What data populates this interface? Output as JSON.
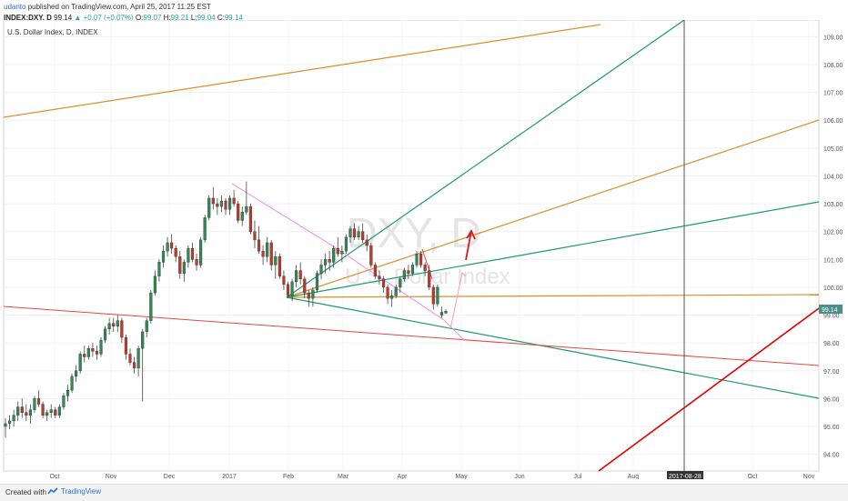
{
  "header": {
    "user": "udanto",
    "published": "published on TradingView.com, April 25, 2017 11:25 EST",
    "symbol": "INDEX:DXY, D",
    "last": "99.14",
    "change": "▲ +0.07 (+0.07%)",
    "o_label": "O:",
    "o_value": "99.07",
    "h_label": "H:",
    "h_value": "99.21",
    "l_label": "L:",
    "l_value": "99.04",
    "c_label": "C:",
    "c_value": "99.14"
  },
  "chart_data": {
    "type": "candlestick",
    "title": "U.S. Dollar Index, D, INDEX",
    "watermark_symbol": "DXY, D",
    "watermark_name": "U.S. Dollar Index",
    "y_ticks": [
      "94.00",
      "95.00",
      "96.00",
      "97.00",
      "98.00",
      "99.00",
      "100.00",
      "101.00",
      "102.00",
      "103.00",
      "104.00",
      "105.00",
      "106.00",
      "107.00",
      "108.00",
      "109.00"
    ],
    "x_ticks": [
      "Oct",
      "Nov",
      "Dec",
      "2017",
      "Feb",
      "Mar",
      "Apr",
      "May",
      "Jun",
      "Jul",
      "Aug",
      "Oct",
      "Nov"
    ],
    "ylim": [
      93.4,
      109.6
    ],
    "price_label": "99.14",
    "date_label": "2017-08-28",
    "candles": [
      [
        95.0,
        95.3,
        94.6,
        95.1
      ],
      [
        95.1,
        95.4,
        94.9,
        95.2
      ],
      [
        95.2,
        95.6,
        95.0,
        95.4
      ],
      [
        95.4,
        95.9,
        95.2,
        95.7
      ],
      [
        95.7,
        96.0,
        95.3,
        95.5
      ],
      [
        95.5,
        95.8,
        95.2,
        95.4
      ],
      [
        95.4,
        95.8,
        95.1,
        95.6
      ],
      [
        95.6,
        96.1,
        95.5,
        96.0
      ],
      [
        96.0,
        96.3,
        95.7,
        95.8
      ],
      [
        95.8,
        95.9,
        95.3,
        95.4
      ],
      [
        95.4,
        95.6,
        95.2,
        95.5
      ],
      [
        95.5,
        95.8,
        95.3,
        95.6
      ],
      [
        95.6,
        95.7,
        95.3,
        95.4
      ],
      [
        95.4,
        95.8,
        95.3,
        95.7
      ],
      [
        95.7,
        96.2,
        95.6,
        96.1
      ],
      [
        96.1,
        96.5,
        95.9,
        96.3
      ],
      [
        96.3,
        96.9,
        96.2,
        96.8
      ],
      [
        96.8,
        97.2,
        96.6,
        97.0
      ],
      [
        97.0,
        97.7,
        96.9,
        97.6
      ],
      [
        97.6,
        97.9,
        97.3,
        97.5
      ],
      [
        97.5,
        97.9,
        97.4,
        97.8
      ],
      [
        97.8,
        98.0,
        97.5,
        97.7
      ],
      [
        97.7,
        97.9,
        97.4,
        97.6
      ],
      [
        97.6,
        98.2,
        97.5,
        98.1
      ],
      [
        98.1,
        98.6,
        98.0,
        98.5
      ],
      [
        98.5,
        98.9,
        98.3,
        98.7
      ],
      [
        98.7,
        98.9,
        98.4,
        98.6
      ],
      [
        98.6,
        99.0,
        98.4,
        98.8
      ],
      [
        98.8,
        98.9,
        98.0,
        98.2
      ],
      [
        98.2,
        98.3,
        97.4,
        97.6
      ],
      [
        97.6,
        97.8,
        97.2,
        97.3
      ],
      [
        97.3,
        97.5,
        96.9,
        97.1
      ],
      [
        97.1,
        97.9,
        96.8,
        97.8
      ],
      [
        97.8,
        98.5,
        95.9,
        98.4
      ],
      [
        98.4,
        98.9,
        98.2,
        98.8
      ],
      [
        98.8,
        99.9,
        98.7,
        99.8
      ],
      [
        99.8,
        100.6,
        99.7,
        100.4
      ],
      [
        100.4,
        101.0,
        100.2,
        100.9
      ],
      [
        100.9,
        101.5,
        100.7,
        101.3
      ],
      [
        101.3,
        101.8,
        101.1,
        101.6
      ],
      [
        101.6,
        101.9,
        101.2,
        101.4
      ],
      [
        101.4,
        101.5,
        100.9,
        101.1
      ],
      [
        101.1,
        101.3,
        100.3,
        100.5
      ],
      [
        100.5,
        101.0,
        100.2,
        100.9
      ],
      [
        100.9,
        101.5,
        100.7,
        101.4
      ],
      [
        101.4,
        101.6,
        100.9,
        101.0
      ],
      [
        101.0,
        101.2,
        100.6,
        100.8
      ],
      [
        100.8,
        101.8,
        100.7,
        101.7
      ],
      [
        101.7,
        102.6,
        101.6,
        102.5
      ],
      [
        102.5,
        103.3,
        102.4,
        103.2
      ],
      [
        103.2,
        103.6,
        102.8,
        103.0
      ],
      [
        103.0,
        103.2,
        102.6,
        102.9
      ],
      [
        102.9,
        103.3,
        102.7,
        103.1
      ],
      [
        103.1,
        103.2,
        102.6,
        102.8
      ],
      [
        102.8,
        103.3,
        102.6,
        103.2
      ],
      [
        103.2,
        103.5,
        102.9,
        103.0
      ],
      [
        103.0,
        103.1,
        102.3,
        102.4
      ],
      [
        102.4,
        102.9,
        102.2,
        102.7
      ],
      [
        102.7,
        103.8,
        102.6,
        102.9
      ],
      [
        102.9,
        103.0,
        101.9,
        102.0
      ],
      [
        102.0,
        102.4,
        101.4,
        101.7
      ],
      [
        101.7,
        102.2,
        101.2,
        101.3
      ],
      [
        101.3,
        101.5,
        100.8,
        101.1
      ],
      [
        101.1,
        101.8,
        100.9,
        101.6
      ],
      [
        101.6,
        101.7,
        100.6,
        100.8
      ],
      [
        100.8,
        101.3,
        100.3,
        101.1
      ],
      [
        101.1,
        101.2,
        100.3,
        100.4
      ],
      [
        100.4,
        100.6,
        99.9,
        100.1
      ],
      [
        100.1,
        100.2,
        99.6,
        99.7
      ],
      [
        99.7,
        100.3,
        99.5,
        100.2
      ],
      [
        100.2,
        100.8,
        100.0,
        100.6
      ],
      [
        100.6,
        100.9,
        100.1,
        100.3
      ],
      [
        100.3,
        100.4,
        99.6,
        99.8
      ],
      [
        99.8,
        99.9,
        99.3,
        99.6
      ],
      [
        99.6,
        100.0,
        99.3,
        99.9
      ],
      [
        99.9,
        100.6,
        99.8,
        100.5
      ],
      [
        100.5,
        101.0,
        100.3,
        100.8
      ],
      [
        100.8,
        101.2,
        100.5,
        101.0
      ],
      [
        101.0,
        101.3,
        100.6,
        100.9
      ],
      [
        100.9,
        101.5,
        100.7,
        101.4
      ],
      [
        101.4,
        101.8,
        101.1,
        101.2
      ],
      [
        101.2,
        101.5,
        100.9,
        101.3
      ],
      [
        101.3,
        101.9,
        101.2,
        101.8
      ],
      [
        101.8,
        102.2,
        101.6,
        102.1
      ],
      [
        102.1,
        102.3,
        101.7,
        101.8
      ],
      [
        101.8,
        102.2,
        101.7,
        102.0
      ],
      [
        102.0,
        102.3,
        101.6,
        101.7
      ],
      [
        101.7,
        101.9,
        101.3,
        101.5
      ],
      [
        101.5,
        101.6,
        100.7,
        100.8
      ],
      [
        100.8,
        100.9,
        100.3,
        100.4
      ],
      [
        100.4,
        100.6,
        100.1,
        100.3
      ],
      [
        100.3,
        100.4,
        99.8,
        100.0
      ],
      [
        100.0,
        100.1,
        99.4,
        99.6
      ],
      [
        99.6,
        99.9,
        99.3,
        99.7
      ],
      [
        99.7,
        100.1,
        99.6,
        100.0
      ],
      [
        100.0,
        100.4,
        99.8,
        100.3
      ],
      [
        100.3,
        100.7,
        100.2,
        100.6
      ],
      [
        100.6,
        100.8,
        100.3,
        100.5
      ],
      [
        100.5,
        100.9,
        100.4,
        100.8
      ],
      [
        100.8,
        101.3,
        100.7,
        101.2
      ],
      [
        101.2,
        101.3,
        100.7,
        100.8
      ],
      [
        100.8,
        100.9,
        100.4,
        100.6
      ],
      [
        100.6,
        100.8,
        99.9,
        100.0
      ],
      [
        100.0,
        100.1,
        99.2,
        99.4
      ],
      [
        99.4,
        100.1,
        99.3,
        100.0
      ],
      [
        99.0,
        99.3,
        98.9,
        99.1
      ],
      [
        99.07,
        99.21,
        99.04,
        99.14
      ]
    ]
  },
  "footer": {
    "created": "Created with",
    "brand": "TradingView"
  }
}
